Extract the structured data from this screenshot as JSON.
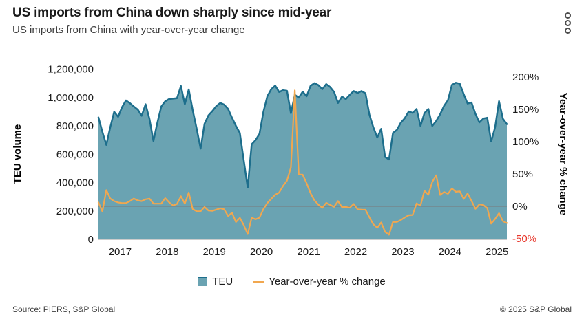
{
  "header": {
    "title": "US imports from China down sharply since mid-year",
    "subtitle": "US imports from China with year-over-year change",
    "menu_icon": "kebab-menu"
  },
  "chart_data": {
    "type": "area",
    "subtype": "combo-area-line",
    "frequency": "monthly",
    "x_start": "2017-01",
    "x_end": "2025-09",
    "x_tick_labels": [
      "2017",
      "2018",
      "2019",
      "2020",
      "2021",
      "2022",
      "2023",
      "2024",
      "2025"
    ],
    "grid": "off",
    "zero_line": true,
    "axes": {
      "left": {
        "title": "TEU volume",
        "min": 0,
        "max": 1200000,
        "ticks": [
          {
            "v": 1200000,
            "label": "1,200,000"
          },
          {
            "v": 1000000,
            "label": "1,000,000"
          },
          {
            "v": 800000,
            "label": "800,000"
          },
          {
            "v": 600000,
            "label": "600,000"
          },
          {
            "v": 400000,
            "label": "400,000"
          },
          {
            "v": 200000,
            "label": "200,000"
          },
          {
            "v": 0,
            "label": "0"
          }
        ]
      },
      "right": {
        "title": "Year-over-year % change",
        "min": -50,
        "max": 200,
        "ticks": [
          {
            "v": 200,
            "label": "200%"
          },
          {
            "v": 150,
            "label": "150%"
          },
          {
            "v": 100,
            "label": "100%"
          },
          {
            "v": 50,
            "label": "50%"
          },
          {
            "v": 0,
            "label": "0%"
          },
          {
            "v": -50,
            "label": "-50%",
            "color": "#e8372c"
          }
        ]
      }
    },
    "series": [
      {
        "name": "TEU",
        "type": "area",
        "axis": "left",
        "fill": "#6aa3b2",
        "stroke": "#1d6e8c",
        "values": [
          860000,
          758000,
          666000,
          791000,
          900000,
          864000,
          932000,
          980000,
          961000,
          937000,
          916000,
          872000,
          953000,
          848000,
          694000,
          823000,
          937000,
          974000,
          990000,
          993000,
          996000,
          1082000,
          953000,
          1058000,
          912000,
          783000,
          640000,
          815000,
          875000,
          905000,
          940000,
          962000,
          950000,
          920000,
          858000,
          800000,
          750000,
          556000,
          365000,
          670000,
          700000,
          745000,
          900000,
          1010000,
          1060000,
          1085000,
          1040000,
          1052000,
          1048000,
          890000,
          1020000,
          1000000,
          1042000,
          1010000,
          1083000,
          1102000,
          1088000,
          1060000,
          1095000,
          1075000,
          1040000,
          962000,
          1007000,
          990000,
          1020000,
          1046000,
          1032000,
          1046000,
          1030000,
          880000,
          791000,
          718000,
          780000,
          581000,
          564000,
          750000,
          772000,
          823000,
          855000,
          902000,
          892000,
          920000,
          800000,
          890000,
          920000,
          800000,
          835000,
          882000,
          942000,
          982000,
          1090000,
          1105000,
          1098000,
          1025000,
          958000,
          965000,
          885000,
          825000,
          852000,
          858000,
          690000,
          790000,
          975000,
          850000,
          813000
        ]
      },
      {
        "name": "Year-over-year % change",
        "type": "line",
        "axis": "right",
        "color": "#f1a74f",
        "values": [
          6,
          -8,
          25,
          12,
          8,
          6,
          5,
          5,
          8,
          12,
          9,
          8,
          10.8,
          11.9,
          4.2,
          4,
          4.1,
          12.7,
          6.2,
          1.3,
          3.6,
          15.5,
          4,
          21.3,
          -4.3,
          -7.7,
          -7.8,
          -1,
          -6.6,
          -7.1,
          -5.1,
          -3.1,
          -4.6,
          -15,
          -10,
          -24.4,
          -17.8,
          -29,
          -43,
          -17.8,
          -20,
          -17.7,
          -4.3,
          5,
          11.6,
          17.9,
          21.2,
          31.5,
          39.7,
          60.1,
          179.5,
          49.3,
          48.9,
          35.6,
          20.3,
          9.1,
          2.6,
          -2.3,
          5.3,
          2.2,
          -0.8,
          8.1,
          -1.3,
          -1,
          -2.1,
          3.6,
          -4.7,
          -5.1,
          -5.3,
          -17,
          -27.8,
          -33.2,
          -25,
          -39.6,
          -44,
          -24.2,
          -24.3,
          -21.3,
          -17.2,
          -13.8,
          -13.4,
          4.5,
          1.1,
          24,
          17.9,
          37.7,
          48,
          17.6,
          22,
          19.3,
          27.5,
          22.5,
          23.1,
          11.4,
          19.8,
          8.4,
          -3.8,
          3.1,
          2,
          -2.7,
          -26.8,
          -19.6,
          -10.6,
          -23.1,
          -26
        ]
      }
    ]
  },
  "legend": {
    "items": [
      {
        "label": "TEU",
        "swatch": "area",
        "color": "#6aa3b2"
      },
      {
        "label": "Year-over-year % change",
        "swatch": "line",
        "color": "#f1a74f"
      }
    ]
  },
  "footer": {
    "source": "Source: PIERS, S&P Global",
    "copyright": "© 2025 S&P Global"
  }
}
